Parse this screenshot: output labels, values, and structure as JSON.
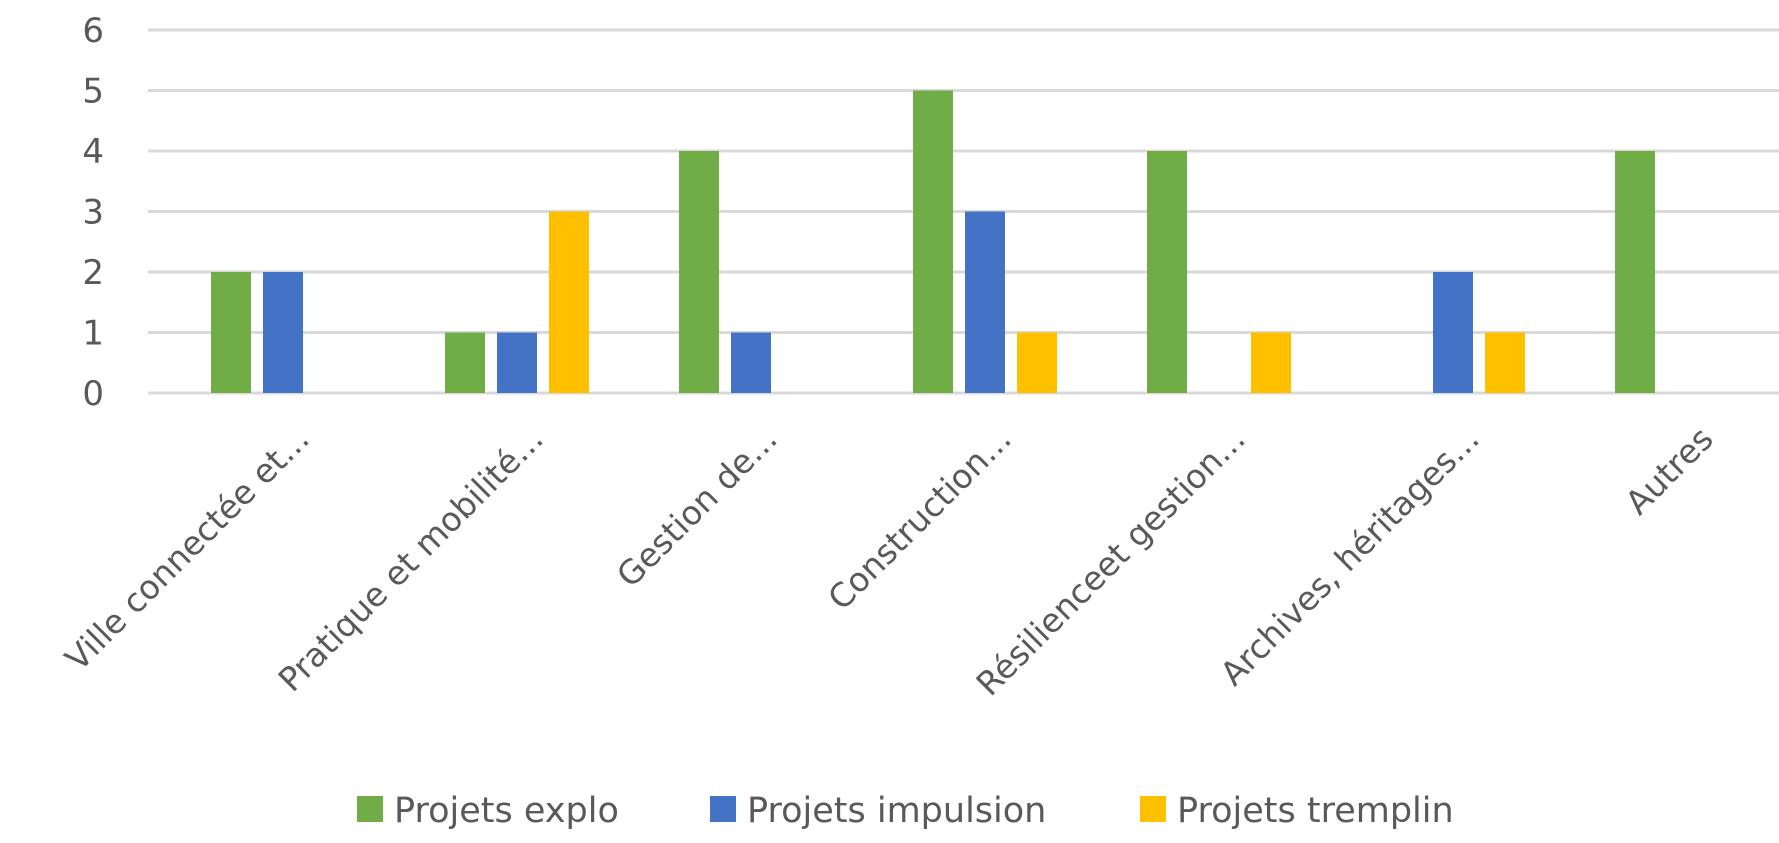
{
  "chart_data": {
    "type": "bar",
    "categories": [
      "Ville connectée et...",
      "Pratique et mobilité...",
      "Gestion de...",
      "Construction...",
      "Résilienceet gestion...",
      "Archives, héritages...",
      "Autres"
    ],
    "series": [
      {
        "name": "Projets explo",
        "color": "#70ad47",
        "values": [
          2,
          1,
          4,
          5,
          4,
          0,
          4
        ]
      },
      {
        "name": "Projets impulsion",
        "color": "#4472c4",
        "values": [
          2,
          1,
          1,
          3,
          0,
          2,
          0
        ]
      },
      {
        "name": "Projets tremplin",
        "color": "#ffc000",
        "values": [
          0,
          3,
          0,
          1,
          1,
          1,
          0
        ]
      }
    ],
    "ylim": [
      0,
      6
    ],
    "yticks": [
      0,
      1,
      2,
      3,
      4,
      5,
      6
    ],
    "grid": true,
    "legend_position": "bottom-center"
  }
}
